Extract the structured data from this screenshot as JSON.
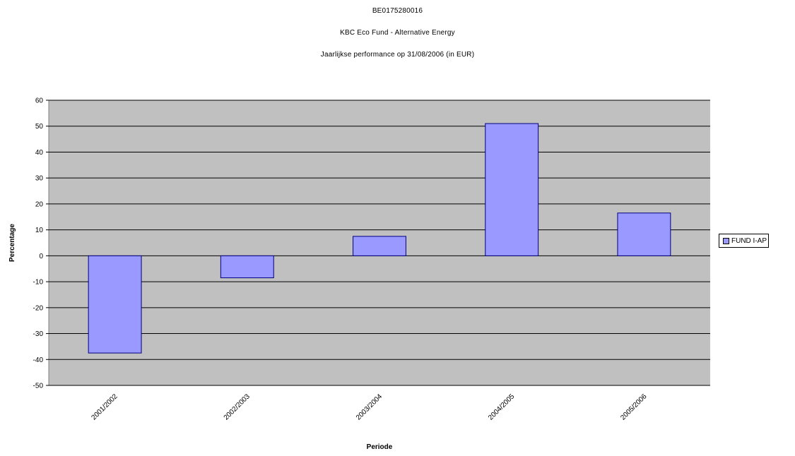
{
  "chart_data": {
    "type": "bar",
    "title": "BE0175280016",
    "subtitle": "KBC Eco Fund - Alternative Energy",
    "subtitle2": "Jaarlijkse performance op 31/08/2006 (in EUR)",
    "xlabel": "Periode",
    "ylabel": "Percentage",
    "categories": [
      "2001/2002",
      "2002/2003",
      "2003/2004",
      "2004/2005",
      "2005/2006"
    ],
    "series": [
      {
        "name": "FUND I-AP",
        "values": [
          -37.5,
          -8.5,
          7.5,
          51,
          16.5
        ],
        "color": "#9999ff"
      }
    ],
    "ylim": [
      -50,
      60
    ],
    "yticks": [
      60,
      50,
      40,
      30,
      20,
      10,
      0,
      -10,
      -20,
      -30,
      -40,
      -50
    ],
    "grid": true,
    "legend_position": "right",
    "plot_background": "#c0c0c0",
    "bar_border_color": "#000080"
  }
}
